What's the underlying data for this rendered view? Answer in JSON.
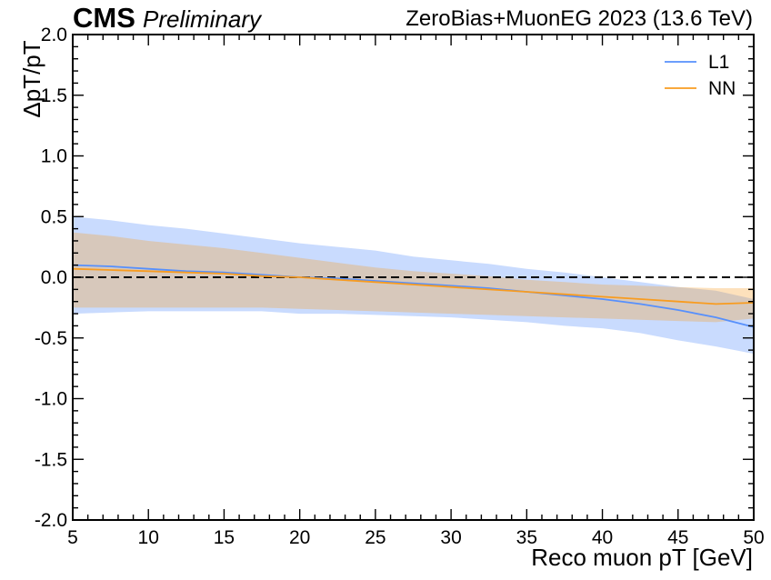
{
  "header": {
    "experiment": "CMS",
    "status": "Preliminary",
    "dataset": "ZeroBias+MuonEG 2023 (13.6 TeV)"
  },
  "chart_data": {
    "type": "line",
    "xlabel": "Reco muon pT [GeV]",
    "ylabel": "ΔpT/pT",
    "xlim": [
      5,
      50
    ],
    "ylim": [
      -2.0,
      2.0
    ],
    "xticks": [
      "5",
      "10",
      "15",
      "20",
      "25",
      "30",
      "35",
      "40",
      "45",
      "50"
    ],
    "yticks": [
      "-2.0",
      "-1.5",
      "-1.0",
      "-0.5",
      "0.0",
      "0.5",
      "1.0",
      "1.5",
      "2.0"
    ],
    "reference_line_y": 0.0,
    "legend_position": "top-right",
    "x": [
      5,
      7.5,
      10,
      12.5,
      15,
      17.5,
      20,
      22.5,
      25,
      27.5,
      30,
      32.5,
      35,
      37.5,
      40,
      42.5,
      45,
      47.5,
      50
    ],
    "series": [
      {
        "name": "L1",
        "color": "#5790fc",
        "mean": [
          0.1,
          0.09,
          0.07,
          0.05,
          0.04,
          0.02,
          0.0,
          -0.01,
          -0.03,
          -0.05,
          -0.07,
          -0.09,
          -0.12,
          -0.15,
          -0.18,
          -0.22,
          -0.27,
          -0.33,
          -0.41
        ],
        "band_upper": [
          0.5,
          0.47,
          0.43,
          0.4,
          0.36,
          0.32,
          0.28,
          0.25,
          0.22,
          0.17,
          0.14,
          0.11,
          0.07,
          0.04,
          0.0,
          -0.04,
          -0.08,
          -0.11,
          -0.18
        ],
        "band_lower": [
          -0.3,
          -0.29,
          -0.28,
          -0.28,
          -0.28,
          -0.28,
          -0.3,
          -0.3,
          -0.31,
          -0.32,
          -0.33,
          -0.35,
          -0.37,
          -0.4,
          -0.42,
          -0.46,
          -0.52,
          -0.57,
          -0.63
        ]
      },
      {
        "name": "NN",
        "color": "#f89c20",
        "mean": [
          0.07,
          0.06,
          0.05,
          0.04,
          0.03,
          0.01,
          0.0,
          -0.02,
          -0.04,
          -0.06,
          -0.08,
          -0.1,
          -0.12,
          -0.14,
          -0.16,
          -0.18,
          -0.2,
          -0.22,
          -0.21
        ],
        "band_upper": [
          0.37,
          0.34,
          0.3,
          0.27,
          0.24,
          0.2,
          0.16,
          0.12,
          0.08,
          0.05,
          0.03,
          0.01,
          -0.02,
          -0.04,
          -0.06,
          -0.07,
          -0.08,
          -0.09,
          -0.09
        ],
        "band_lower": [
          -0.25,
          -0.25,
          -0.25,
          -0.25,
          -0.25,
          -0.25,
          -0.26,
          -0.27,
          -0.28,
          -0.29,
          -0.3,
          -0.31,
          -0.32,
          -0.33,
          -0.34,
          -0.35,
          -0.36,
          -0.37,
          -0.34
        ]
      }
    ]
  }
}
